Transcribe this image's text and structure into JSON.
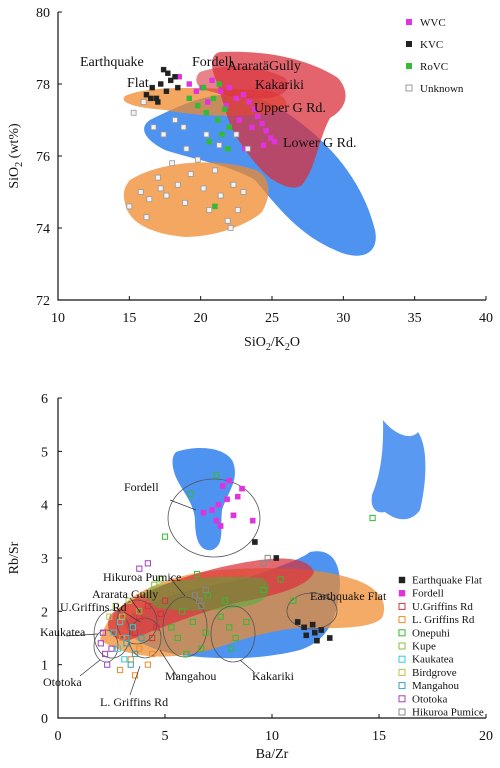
{
  "chart_data": [
    {
      "type": "scatter",
      "xlabel_main": "SiO",
      "xlabel_sub1": "2",
      "xlabel_mid": "/K",
      "xlabel_sub2": "2",
      "xlabel_end": "O",
      "ylabel_main": "SiO",
      "ylabel_sub": "2",
      "ylabel_end": " (wt%)",
      "xlim": [
        10,
        40
      ],
      "ylim": [
        72,
        80
      ],
      "xticks": [
        "10",
        "15",
        "20",
        "25",
        "30",
        "35",
        "40"
      ],
      "yticks": [
        "72",
        "74",
        "76",
        "78",
        "80"
      ],
      "legend": [
        "WVC",
        "KVC",
        "RoVC",
        "Unknown"
      ],
      "legend_position": "top-right",
      "annotations": [
        {
          "text": "Earthquake",
          "x": 13.5,
          "y": 78.45
        },
        {
          "text": "Flat",
          "x": 15,
          "y": 77.78
        },
        {
          "text": "Fordell",
          "x": 19.5,
          "y": 78.45
        },
        {
          "text": "AraratäGully",
          "x": 27.5,
          "y": 78.3
        },
        {
          "text": "Kakariki",
          "x": 29,
          "y": 77.68
        },
        {
          "text": "Upper G Rd.",
          "x": 28.5,
          "y": 76.95
        },
        {
          "text": "Lower G Rd.",
          "x": 30.5,
          "y": 76.22
        }
      ],
      "series": [
        {
          "name": "WVC",
          "color": "#e033e0",
          "points": [
            [
              18.5,
              78.2
            ],
            [
              19.2,
              78.0
            ],
            [
              20.1,
              77.9
            ],
            [
              20.8,
              78.1
            ],
            [
              21.4,
              77.8
            ],
            [
              22.0,
              77.9
            ],
            [
              22.5,
              77.6
            ],
            [
              23.0,
              77.7
            ],
            [
              23.4,
              77.5
            ],
            [
              23.8,
              77.3
            ],
            [
              24.0,
              77.1
            ],
            [
              24.3,
              76.9
            ],
            [
              24.6,
              76.7
            ],
            [
              24.9,
              76.5
            ],
            [
              25.2,
              76.4
            ],
            [
              23.1,
              76.2
            ],
            [
              24.4,
              76.3
            ],
            [
              21.8,
              77.4
            ],
            [
              22.7,
              77.0
            ],
            [
              20.5,
              77.5
            ],
            [
              19.7,
              77.8
            ],
            [
              23.6,
              76.8
            ]
          ]
        },
        {
          "name": "KVC",
          "color": "#222222",
          "points": [
            [
              16.2,
              77.7
            ],
            [
              16.6,
              77.9
            ],
            [
              16.9,
              77.6
            ],
            [
              17.2,
              78.0
            ],
            [
              17.4,
              78.4
            ],
            [
              17.6,
              77.8
            ],
            [
              17.9,
              78.1
            ],
            [
              18.2,
              78.2
            ],
            [
              17.0,
              77.5
            ],
            [
              16.5,
              77.6
            ],
            [
              18.4,
              77.9
            ],
            [
              17.7,
              78.3
            ]
          ]
        },
        {
          "name": "RoVC",
          "color": "#33bb33",
          "points": [
            [
              19.2,
              77.6
            ],
            [
              19.8,
              77.4
            ],
            [
              20.4,
              77.2
            ],
            [
              20.9,
              77.6
            ],
            [
              21.2,
              77.0
            ],
            [
              21.7,
              77.3
            ],
            [
              22.0,
              76.8
            ],
            [
              21.5,
              76.6
            ],
            [
              20.6,
              76.4
            ],
            [
              21.9,
              76.2
            ],
            [
              21.0,
              74.6
            ],
            [
              20.2,
              77.9
            ],
            [
              21.3,
              78.0
            ]
          ]
        },
        {
          "name": "Unknown",
          "color": "#999999",
          "points": [
            [
              15.0,
              74.6
            ],
            [
              15.8,
              75.0
            ],
            [
              16.4,
              74.8
            ],
            [
              17.0,
              75.4
            ],
            [
              17.6,
              74.9
            ],
            [
              18.0,
              75.8
            ],
            [
              18.4,
              75.2
            ],
            [
              18.9,
              74.7
            ],
            [
              19.3,
              75.5
            ],
            [
              19.8,
              75.9
            ],
            [
              20.2,
              75.1
            ],
            [
              20.6,
              74.5
            ],
            [
              21.0,
              75.6
            ],
            [
              21.4,
              74.9
            ],
            [
              21.9,
              74.2
            ],
            [
              22.3,
              75.2
            ],
            [
              22.6,
              74.5
            ],
            [
              23.0,
              75.0
            ],
            [
              19.0,
              76.2
            ],
            [
              20.4,
              76.6
            ],
            [
              21.3,
              76.3
            ],
            [
              22.5,
              76.6
            ],
            [
              23.3,
              76.2
            ],
            [
              15.3,
              77.2
            ],
            [
              16.0,
              77.5
            ],
            [
              16.7,
              76.8
            ],
            [
              17.4,
              76.6
            ],
            [
              18.2,
              77.0
            ],
            [
              18.8,
              76.8
            ],
            [
              22.1,
              74.0
            ],
            [
              17.2,
              75.1
            ],
            [
              16.2,
              74.3
            ]
          ]
        }
      ],
      "fields": [
        {
          "color": "#2f80ed",
          "label": "blue"
        },
        {
          "color": "#f08a2c",
          "label": "orange"
        },
        {
          "color": "#d9303c",
          "label": "red"
        }
      ]
    },
    {
      "type": "scatter",
      "xlabel": "Ba/Zr",
      "ylabel": "Rb/Sr",
      "xlim": [
        0,
        20
      ],
      "ylim": [
        0,
        6
      ],
      "xticks": [
        "0",
        "5",
        "10",
        "15",
        "20"
      ],
      "yticks": [
        "0",
        "1",
        "2",
        "3",
        "4",
        "5",
        "6"
      ],
      "legend_position": "right",
      "annotations": [
        {
          "text": "Fordell",
          "x": 6.2,
          "y": 4.85
        },
        {
          "text": "Hikuroa Pumice",
          "x": 6.7,
          "y": 2.68
        },
        {
          "text": "Ararata Gully",
          "x": 4.5,
          "y": 2.32
        },
        {
          "text": "U.Griffins Rd",
          "x": 4.2,
          "y": 2.0
        },
        {
          "text": "Kaukatea",
          "x": 0.1,
          "y": 1.45
        },
        {
          "text": "Ototoka",
          "x": 0.2,
          "y": 0.64
        },
        {
          "text": "Mangahou",
          "x": 6.7,
          "y": 0.82
        },
        {
          "text": "L. Griffins Rd",
          "x": 4.2,
          "y": 0.2
        },
        {
          "text": "Kakariki",
          "x": 9.5,
          "y": 0.72
        },
        {
          "text": "Earthquake Flat",
          "x": 13.8,
          "y": 2.12
        }
      ],
      "series": [
        {
          "name": "Earthquake Flat",
          "marker": "filled-square",
          "color": "#222222",
          "points": [
            [
              11.2,
              1.8
            ],
            [
              11.6,
              1.55
            ],
            [
              11.9,
              1.75
            ],
            [
              12.1,
              1.45
            ],
            [
              12.3,
              1.65
            ],
            [
              12.7,
              1.5
            ],
            [
              11.5,
              1.7
            ],
            [
              12.0,
              1.6
            ],
            [
              10.2,
              3.0
            ],
            [
              9.2,
              3.3
            ]
          ]
        },
        {
          "name": "Fordell",
          "marker": "filled-square",
          "color": "#e033e0",
          "points": [
            [
              7.5,
              4.0
            ],
            [
              7.7,
              4.35
            ],
            [
              7.9,
              4.1
            ],
            [
              8.2,
              3.8
            ],
            [
              7.2,
              3.9
            ],
            [
              8.4,
              4.15
            ],
            [
              7.6,
              3.6
            ],
            [
              8.6,
              4.3
            ],
            [
              8.0,
              4.45
            ],
            [
              7.4,
              3.7
            ],
            [
              6.8,
              3.85
            ],
            [
              9.1,
              3.7
            ]
          ]
        },
        {
          "name": "U.Griffins Rd",
          "marker": "open-square",
          "color": "#d9303c",
          "points": [
            [
              3.8,
              1.9
            ],
            [
              4.2,
              2.1
            ],
            [
              4.6,
              1.7
            ],
            [
              5.0,
              2.2
            ],
            [
              4.4,
              1.5
            ],
            [
              3.6,
              1.6
            ],
            [
              4.8,
              1.95
            ]
          ]
        },
        {
          "name": "L. Griffins Rd",
          "marker": "open-square",
          "color": "#f08a2c",
          "points": [
            [
              3.0,
              1.5
            ],
            [
              3.4,
              1.1
            ],
            [
              3.8,
              1.3
            ],
            [
              4.2,
              1.0
            ],
            [
              2.9,
              0.9
            ],
            [
              3.6,
              0.8
            ],
            [
              4.4,
              1.2
            ]
          ]
        },
        {
          "name": "Onepuhi",
          "marker": "open-square",
          "color": "#33bb33",
          "points": [
            [
              5.0,
              3.4
            ],
            [
              6.2,
              4.2
            ],
            [
              7.4,
              4.55
            ],
            [
              14.7,
              3.75
            ],
            [
              6.5,
              2.7
            ],
            [
              7.0,
              2.3
            ],
            [
              5.8,
              2.0
            ],
            [
              6.3,
              1.8
            ],
            [
              6.9,
              1.6
            ],
            [
              7.6,
              1.9
            ],
            [
              8.0,
              1.7
            ],
            [
              8.3,
              1.5
            ],
            [
              7.8,
              2.2
            ],
            [
              8.8,
              1.8
            ],
            [
              8.1,
              1.3
            ],
            [
              5.3,
              1.7
            ],
            [
              5.6,
              1.5
            ],
            [
              6.0,
              1.2
            ],
            [
              6.7,
              1.3
            ],
            [
              9.6,
              2.4
            ],
            [
              10.4,
              2.6
            ],
            [
              11.0,
              2.2
            ]
          ]
        },
        {
          "name": "Kupe",
          "marker": "open-square",
          "color": "#7dc242",
          "points": [
            [
              4.0,
              2.3
            ],
            [
              4.5,
              2.5
            ],
            [
              3.8,
              2.0
            ],
            [
              4.8,
              2.6
            ]
          ]
        },
        {
          "name": "Kaukatea",
          "marker": "open-square",
          "color": "#33cccc",
          "points": [
            [
              2.6,
              1.6
            ],
            [
              2.9,
              1.8
            ],
            [
              3.2,
              1.5
            ],
            [
              3.5,
              1.7
            ],
            [
              2.8,
              1.3
            ],
            [
              3.1,
              1.1
            ]
          ]
        },
        {
          "name": "Birdgrove",
          "marker": "open-square",
          "color": "#b5c44a",
          "points": [
            [
              2.4,
              1.9
            ],
            [
              2.7,
              2.1
            ],
            [
              3.0,
              1.9
            ],
            [
              3.3,
              2.2
            ]
          ]
        },
        {
          "name": "Mangahou",
          "marker": "open-square",
          "color": "#3aa0b0",
          "points": [
            [
              3.2,
              1.4
            ],
            [
              3.6,
              1.2
            ],
            [
              3.9,
              1.5
            ],
            [
              3.4,
              1.0
            ]
          ]
        },
        {
          "name": "Ototoka",
          "marker": "open-square",
          "color": "#a040c0",
          "points": [
            [
              2.0,
              1.4
            ],
            [
              2.2,
              1.2
            ],
            [
              2.3,
              1.0
            ],
            [
              2.5,
              1.3
            ],
            [
              2.1,
              1.6
            ],
            [
              3.8,
              2.8
            ],
            [
              4.2,
              2.9
            ]
          ]
        },
        {
          "name": "Hikuroa Pumice",
          "marker": "open-square",
          "color": "#888888",
          "points": [
            [
              6.4,
              2.3
            ],
            [
              6.7,
              2.1
            ],
            [
              6.9,
              2.4
            ],
            [
              6.6,
              2.2
            ],
            [
              9.6,
              2.9
            ],
            [
              9.8,
              3.0
            ]
          ]
        }
      ],
      "fields": [
        {
          "color": "#2f80ed",
          "label": "blue"
        },
        {
          "color": "#f08a2c",
          "label": "orange"
        },
        {
          "color": "#d9303c",
          "label": "red"
        }
      ]
    }
  ]
}
